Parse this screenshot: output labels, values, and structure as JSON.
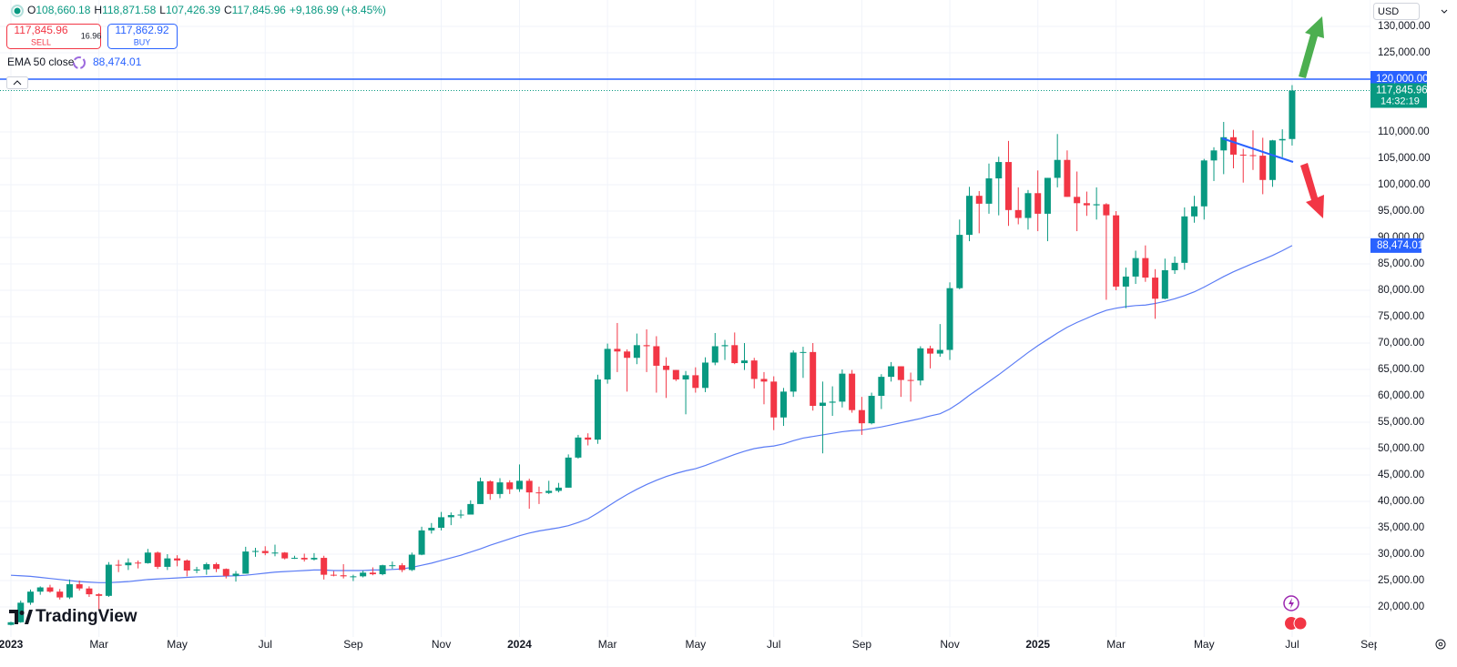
{
  "header": {
    "ohlc": [
      {
        "key": "O",
        "value": "108,660.18"
      },
      {
        "key": "H",
        "value": "118,871.58"
      },
      {
        "key": "L",
        "value": "107,426.39"
      },
      {
        "key": "C",
        "value": "117,845.96"
      }
    ],
    "change": "+9,186.99 (+8.45%)"
  },
  "trade": {
    "sell_price": "117,845.96",
    "sell": "SELL",
    "spread": "16.96",
    "buy_price": "117,862.92",
    "buy": "BUY"
  },
  "indicator": {
    "name": "EMA 50 close",
    "value": "88,474.01"
  },
  "currency": "USD",
  "logo": "TradingView",
  "chart_data": {
    "type": "candlestick",
    "categories": [
      "2023",
      null,
      null,
      null,
      null,
      null,
      null,
      null,
      null,
      "Mar",
      null,
      null,
      null,
      null,
      null,
      null,
      null,
      "May",
      null,
      null,
      null,
      null,
      null,
      null,
      null,
      null,
      "Jul",
      null,
      null,
      null,
      null,
      null,
      null,
      null,
      null,
      "Sep",
      null,
      null,
      null,
      null,
      null,
      null,
      null,
      null,
      "Nov",
      null,
      null,
      null,
      null,
      null,
      null,
      null,
      "2024",
      null,
      null,
      null,
      null,
      null,
      null,
      null,
      null,
      "Mar",
      null,
      null,
      null,
      null,
      null,
      null,
      null,
      null,
      "May",
      null,
      null,
      null,
      null,
      null,
      null,
      null,
      "Jul",
      null,
      null,
      null,
      null,
      null,
      null,
      null,
      null,
      "Sep",
      null,
      null,
      null,
      null,
      null,
      null,
      null,
      null,
      "Nov",
      null,
      null,
      null,
      null,
      null,
      null,
      null,
      null,
      "2025",
      null,
      null,
      null,
      null,
      null,
      null,
      null,
      "Mar",
      null,
      null,
      null,
      null,
      null,
      null,
      null,
      null,
      "May",
      null,
      null,
      null,
      null,
      null,
      null,
      null,
      null,
      "Jul",
      null,
      null,
      null,
      null,
      null,
      null,
      null,
      "Sep"
    ],
    "open": [
      16600,
      17100,
      20800,
      22900,
      23700,
      22900,
      21800,
      24300,
      23500,
      22400,
      22100,
      28000,
      27900,
      28400,
      28300,
      30300,
      27600,
      29200,
      28800,
      26900,
      27100,
      28100,
      27200,
      25900,
      26300,
      30500,
      30600,
      30200,
      30300,
      29200,
      29300,
      29000,
      29300,
      26100,
      26000,
      25800,
      25800,
      26500,
      26200,
      27900,
      27900,
      27000,
      29900,
      34500,
      35000,
      37000,
      37400,
      37500,
      39500,
      43800,
      41400,
      43600,
      42300,
      43900,
      41700,
      41600,
      42000,
      42600,
      48300,
      52100,
      51700,
      63100,
      68900,
      68400,
      67200,
      69600,
      69400,
      65700,
      64900,
      63100,
      63900,
      61500,
      66300,
      69400,
      69600,
      66200,
      66700,
      63200,
      62700,
      55900,
      60800,
      68200,
      68300,
      58100,
      58700,
      58900,
      64200,
      57300,
      54800,
      60000,
      63600,
      65600,
      63000,
      62900,
      69000,
      68000,
      68700,
      80400,
      90500,
      97900,
      96400,
      101200,
      104300,
      95200,
      93700,
      98400,
      94500,
      101300,
      104700,
      97700,
      96500,
      96100,
      96300,
      94200,
      80700,
      82600,
      86100,
      82400,
      78400,
      83800,
      85200,
      94000,
      95900,
      104600,
      106500,
      109000,
      105700,
      105600,
      105500,
      100900,
      108400,
      108660.18,
      null,
      null,
      null,
      null,
      null,
      null,
      null,
      null
    ],
    "high": [
      17200,
      21200,
      23300,
      23900,
      24200,
      23400,
      25200,
      25000,
      23900,
      22600,
      28500,
      28900,
      29200,
      28800,
      31000,
      30500,
      30000,
      29800,
      29000,
      27600,
      28400,
      28400,
      27300,
      26800,
      31400,
      31200,
      31500,
      31800,
      30400,
      29700,
      30100,
      30200,
      29700,
      26800,
      28100,
      26100,
      26900,
      27500,
      28000,
      28600,
      28300,
      30300,
      35200,
      35900,
      38000,
      37900,
      38400,
      40200,
      44500,
      44000,
      44400,
      44000,
      47000,
      44300,
      42800,
      43900,
      43500,
      48900,
      52600,
      52900,
      64000,
      69900,
      73800,
      68800,
      71800,
      72600,
      71300,
      67300,
      64900,
      64700,
      65400,
      67300,
      71900,
      70600,
      72000,
      70000,
      67200,
      64500,
      63700,
      61500,
      68600,
      69300,
      70000,
      62700,
      61800,
      65000,
      64900,
      59800,
      60600,
      64100,
      66400,
      65600,
      64400,
      69400,
      69500,
      73600,
      81500,
      93400,
      99600,
      98800,
      104000,
      105300,
      108300,
      99500,
      99000,
      102700,
      101300,
      109600,
      106500,
      102500,
      98700,
      99500,
      96500,
      95000,
      84300,
      87500,
      88500,
      84000,
      86000,
      86400,
      95700,
      97900,
      104900,
      107100,
      111900,
      110400,
      106800,
      110300,
      108900,
      108500,
      110500,
      118871.58,
      null,
      null,
      null,
      null,
      null,
      null,
      null,
      null
    ],
    "low": [
      16500,
      17000,
      20400,
      22300,
      22700,
      21400,
      21500,
      23100,
      21900,
      19600,
      21900,
      26600,
      27000,
      27300,
      28200,
      27200,
      27000,
      27700,
      25800,
      26400,
      26100,
      26600,
      25400,
      24800,
      26300,
      29500,
      29800,
      29600,
      29000,
      29100,
      28600,
      28800,
      25200,
      25800,
      25400,
      24900,
      25600,
      26000,
      26000,
      27200,
      26600,
      26800,
      29800,
      33900,
      34500,
      35500,
      36800,
      37500,
      39500,
      40300,
      40600,
      41400,
      41800,
      38600,
      39500,
      41400,
      41700,
      42600,
      48100,
      50600,
      50900,
      62300,
      64500,
      60800,
      66000,
      64500,
      60600,
      59600,
      62800,
      56500,
      60600,
      60700,
      65800,
      66800,
      66000,
      64900,
      61400,
      58400,
      53500,
      54300,
      59800,
      63400,
      57200,
      49100,
      56200,
      57800,
      56800,
      52600,
      54600,
      57500,
      62700,
      59800,
      58900,
      62000,
      65200,
      67400,
      66800,
      80200,
      89300,
      90800,
      94500,
      94200,
      92200,
      92500,
      91500,
      91200,
      89300,
      99500,
      97700,
      91200,
      94100,
      93400,
      78200,
      80000,
      76600,
      81200,
      81600,
      74600,
      78300,
      83100,
      83900,
      92800,
      93400,
      100700,
      102000,
      103100,
      100400,
      102800,
      98200,
      99600,
      105200,
      107426.39,
      null,
      null,
      null,
      null,
      null,
      null,
      null,
      null
    ],
    "close": [
      17100,
      20800,
      22900,
      23700,
      22900,
      21800,
      24300,
      23500,
      22400,
      22100,
      28000,
      27900,
      28400,
      28300,
      30300,
      27600,
      29200,
      28800,
      26900,
      27100,
      28100,
      27200,
      25900,
      26300,
      30500,
      30600,
      30200,
      30300,
      29200,
      29300,
      29000,
      29300,
      26100,
      26000,
      25800,
      25800,
      26500,
      26200,
      27900,
      27900,
      27000,
      29900,
      34500,
      35000,
      37000,
      37400,
      37500,
      39500,
      43800,
      41400,
      43600,
      42300,
      43900,
      41700,
      41600,
      42000,
      42600,
      48300,
      52100,
      51700,
      63100,
      68900,
      68400,
      67200,
      69600,
      69400,
      65700,
      64900,
      63100,
      63900,
      61500,
      66300,
      69400,
      69600,
      66200,
      66700,
      63200,
      62700,
      55900,
      60800,
      68200,
      68300,
      58100,
      58700,
      58900,
      64200,
      57300,
      54800,
      60000,
      63600,
      65600,
      63000,
      62900,
      69000,
      68000,
      68700,
      80400,
      90500,
      97900,
      96400,
      101200,
      104300,
      95200,
      93700,
      98400,
      94500,
      101300,
      104700,
      97700,
      96500,
      96100,
      96300,
      94200,
      80700,
      82600,
      86100,
      82400,
      78400,
      83800,
      85200,
      94000,
      95900,
      104600,
      106500,
      109000,
      105700,
      105600,
      105500,
      100900,
      108400,
      108658.97,
      117845.96,
      null,
      null,
      null,
      null,
      null,
      null,
      null,
      null
    ],
    "ema": [
      26000,
      25900,
      25800,
      25600,
      25400,
      25200,
      25000,
      24800,
      24700,
      24600,
      24600,
      24700,
      24800,
      25000,
      25200,
      25300,
      25400,
      25500,
      25600,
      25700,
      25750,
      25800,
      25850,
      25900,
      26000,
      26200,
      26400,
      26600,
      26700,
      26800,
      26900,
      27000,
      27000,
      26900,
      26900,
      26900,
      26900,
      27000,
      27000,
      27100,
      27200,
      27500,
      27900,
      28300,
      28800,
      29300,
      29800,
      30400,
      31000,
      31700,
      32300,
      32900,
      33500,
      34000,
      34400,
      34700,
      35000,
      35400,
      36000,
      36700,
      37800,
      39000,
      40200,
      41300,
      42300,
      43200,
      44000,
      44700,
      45300,
      45800,
      46200,
      46800,
      47500,
      48200,
      48900,
      49500,
      50000,
      50300,
      50500,
      50900,
      51500,
      52000,
      52300,
      52600,
      52900,
      53200,
      53400,
      53500,
      53800,
      54100,
      54500,
      54900,
      55300,
      55700,
      56200,
      56600,
      57500,
      58700,
      60100,
      61400,
      62700,
      64000,
      65400,
      66800,
      68200,
      69500,
      70700,
      71900,
      73000,
      73900,
      74700,
      75500,
      76200,
      76600,
      76900,
      77100,
      77200,
      77500,
      77900,
      78400,
      79000,
      79700,
      80600,
      81600,
      82600,
      83500,
      84300,
      85100,
      85800,
      86600,
      87500,
      88474.01,
      null,
      null,
      null,
      null,
      null,
      null,
      null,
      null
    ],
    "up_color": "#089981",
    "down_color": "#f23645",
    "ema_color": "#5b7cf5",
    "ylim": [
      14310,
      135000
    ],
    "yticks": [
      {
        "value": 20000,
        "label": "20,000.00"
      },
      {
        "value": 25000,
        "label": "25,000.00"
      },
      {
        "value": 30000,
        "label": "30,000.00"
      },
      {
        "value": 35000,
        "label": "35,000.00"
      },
      {
        "value": 40000,
        "label": "40,000.00"
      },
      {
        "value": 45000,
        "label": "45,000.00"
      },
      {
        "value": 50000,
        "label": "50,000.00"
      },
      {
        "value": 55000,
        "label": "55,000.00"
      },
      {
        "value": 60000,
        "label": "60,000.00"
      },
      {
        "value": 65000,
        "label": "65,000.00"
      },
      {
        "value": 70000,
        "label": "70,000.00"
      },
      {
        "value": 75000,
        "label": "75,000.00"
      },
      {
        "value": 80000,
        "label": "80,000.00"
      },
      {
        "value": 85000,
        "label": "85,000.00"
      },
      {
        "value": 90000,
        "label": "90,000.00"
      },
      {
        "value": 95000,
        "label": "95,000.00"
      },
      {
        "value": 100000,
        "label": "100,000.00"
      },
      {
        "value": 105000,
        "label": "105,000.00"
      },
      {
        "value": 110000,
        "label": "110,000.00"
      },
      {
        "value": 125000,
        "label": "125,000.00"
      },
      {
        "value": 130000,
        "label": "130,000.00"
      }
    ],
    "grid": true,
    "level": {
      "value": 120000,
      "label": "120,000.00"
    },
    "last_price_label": "117,845.96",
    "countdown": "14:32:19",
    "ema_label": "88,474.01"
  }
}
